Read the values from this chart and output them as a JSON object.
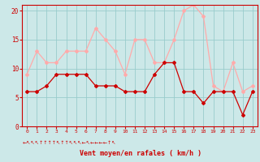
{
  "hours": [
    0,
    1,
    2,
    3,
    4,
    5,
    6,
    7,
    8,
    9,
    10,
    11,
    12,
    13,
    14,
    15,
    16,
    17,
    18,
    19,
    20,
    21,
    22,
    23
  ],
  "wind_avg": [
    6,
    6,
    7,
    9,
    9,
    9,
    9,
    7,
    7,
    7,
    6,
    6,
    6,
    9,
    11,
    11,
    6,
    6,
    4,
    6,
    6,
    6,
    2,
    6
  ],
  "wind_gust": [
    9,
    13,
    11,
    11,
    13,
    13,
    13,
    17,
    15,
    13,
    9,
    15,
    15,
    11,
    11,
    15,
    20,
    21,
    19,
    7,
    6,
    11,
    6,
    7
  ],
  "avg_color": "#cc0000",
  "gust_color": "#ffaaaa",
  "bg_color": "#cce8e8",
  "grid_color": "#99cccc",
  "xlabel": "Vent moyen/en rafales ( km/h )",
  "xlabel_color": "#cc0000",
  "tick_color": "#cc0000",
  "ylim": [
    0,
    21
  ],
  "yticks": [
    0,
    5,
    10,
    15,
    20
  ],
  "arrow_symbols": [
    "←",
    "↖",
    "↖",
    "↖",
    "↑",
    "↑",
    "↑",
    "↑",
    "↖",
    "↑",
    "↑",
    "↖",
    "↖",
    "↖",
    "←",
    "↖",
    "←",
    "←",
    "←",
    "←",
    "↑",
    "↖",
    "",
    ""
  ]
}
